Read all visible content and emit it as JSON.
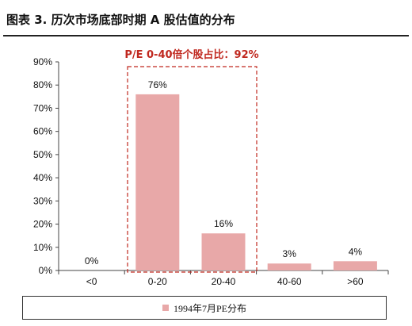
{
  "title": "图表 3. 历次市场底部时期 A 股估值的分布",
  "annotation": "P/E 0-40倍个股占比：92%",
  "colors": {
    "bar": "#E8A8A8",
    "annotation": "#C0281F",
    "axis": "#444444"
  },
  "chart_data": {
    "type": "bar",
    "categories": [
      "<0",
      "0-20",
      "20-40",
      "40-60",
      ">60"
    ],
    "series": [
      {
        "name": "1994年7月PE分布",
        "values": [
          0,
          76,
          16,
          3,
          4
        ]
      }
    ],
    "data_labels": [
      "0%",
      "76%",
      "16%",
      "3%",
      "4%"
    ],
    "ylim": [
      0,
      90
    ],
    "yticks": [
      "0%",
      "10%",
      "20%",
      "30%",
      "40%",
      "50%",
      "60%",
      "70%",
      "80%",
      "90%"
    ],
    "grid": false,
    "legend_position": "bottom"
  }
}
